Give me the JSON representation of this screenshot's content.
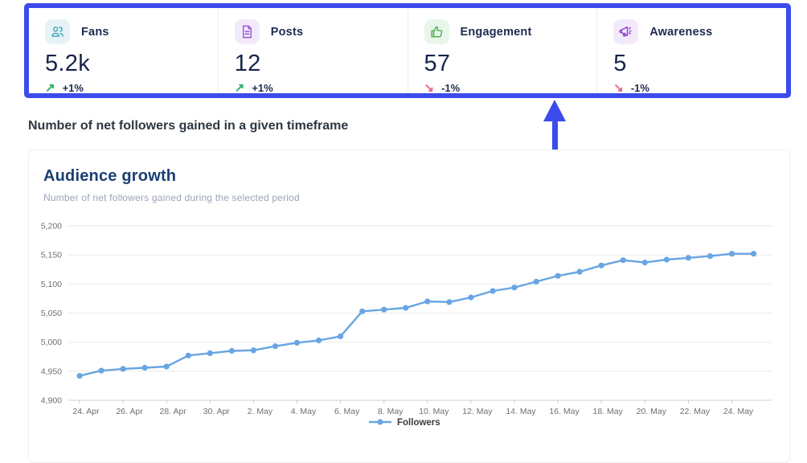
{
  "accent_blue": "#3c4beb",
  "stats": {
    "up_color": "#2bab67",
    "down_color": "#e9628e",
    "cards": [
      {
        "label": "Fans",
        "value": "5.2k",
        "change": "+1%",
        "direction": "up",
        "icon": "users-icon",
        "icon_color": "#45a5b4",
        "icon_bg": "#e6f3f6"
      },
      {
        "label": "Posts",
        "value": "12",
        "change": "+1%",
        "direction": "up",
        "icon": "document-icon",
        "icon_color": "#9a55d8",
        "icon_bg": "#f2eafb"
      },
      {
        "label": "Engagement",
        "value": "57",
        "change": "-1%",
        "direction": "down",
        "icon": "thumbs-up-icon",
        "icon_color": "#4caf50",
        "icon_bg": "#e9f6ea"
      },
      {
        "label": "Awareness",
        "value": "5",
        "change": "-1%",
        "direction": "down",
        "icon": "megaphone-icon",
        "icon_color": "#8e3fd2",
        "icon_bg": "#f2eafb"
      }
    ]
  },
  "section_heading": "Number of net followers gained in a given timeframe",
  "chart_card": {
    "title": "Audience growth",
    "subtitle": "Number of net followers gained during the selected period"
  },
  "chart_data": {
    "type": "line",
    "title": "Audience growth",
    "grid": true,
    "legend_position": "bottom",
    "ylim": [
      4900,
      5200
    ],
    "y_ticks": [
      4900,
      4950,
      5000,
      5050,
      5100,
      5150,
      5200
    ],
    "y_tick_labels": [
      "4,900",
      "4,950",
      "5,000",
      "5,050",
      "5,100",
      "5,150",
      "5,200"
    ],
    "x_tick_labels": [
      "24. Apr",
      "26. Apr",
      "28. Apr",
      "30. Apr",
      "2. May",
      "4. May",
      "6. May",
      "8. May",
      "10. May",
      "12. May",
      "14. May",
      "16. May",
      "18. May",
      "20. May",
      "22. May",
      "24. May"
    ],
    "x": [
      "24. Apr",
      "25. Apr",
      "26. Apr",
      "27. Apr",
      "28. Apr",
      "29. Apr",
      "30. Apr",
      "1. May",
      "2. May",
      "3. May",
      "4. May",
      "5. May",
      "6. May",
      "7. May",
      "8. May",
      "9. May",
      "10. May",
      "11. May",
      "12. May",
      "13. May",
      "14. May",
      "15. May",
      "16. May",
      "17. May",
      "18. May",
      "19. May",
      "20. May",
      "21. May",
      "22. May",
      "23. May",
      "24. May",
      "25. May"
    ],
    "series": [
      {
        "name": "Followers",
        "color": "#68a5e2",
        "values": [
          4942,
          4951,
          4954,
          4956,
          4958,
          4977,
          4981,
          4985,
          4986,
          4993,
          4999,
          5003,
          5010,
          5053,
          5056,
          5059,
          5070,
          5069,
          5077,
          5088,
          5094,
          5104,
          5114,
          5121,
          5132,
          5141,
          5137,
          5142,
          5145,
          5148,
          5152,
          5152
        ]
      }
    ]
  }
}
